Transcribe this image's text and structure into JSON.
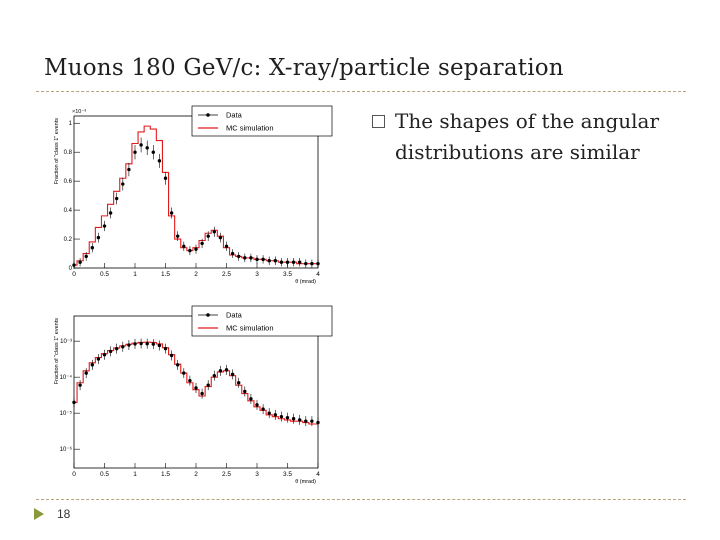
{
  "slide": {
    "title": "Muons 180 GeV/c: X-ray/particle separation",
    "bullet": "The shapes of the angular distributions are similar",
    "page_number": "18"
  },
  "colors": {
    "data": "#000000",
    "mc": "#e31a1c",
    "accent": "#8a9a3a",
    "rule": "#b9a27a"
  },
  "chart_data": [
    {
      "type": "line",
      "scale": "linear",
      "exponent_label": "×10⁻³",
      "xlabel": "θ (mrad)",
      "ylabel": "Fraction of \"class 1\" events",
      "xlim": [
        0,
        4
      ],
      "ylim": [
        0,
        0.00105
      ],
      "xticks": [
        "0",
        "0.5",
        "1",
        "1.5",
        "2",
        "2.5",
        "3",
        "3.5",
        "4"
      ],
      "yticks": [
        "0",
        "0.2",
        "0.4",
        "0.6",
        "0.8",
        "1"
      ],
      "legend": {
        "position": "top-right",
        "entries": [
          "Data",
          "MC simulation"
        ]
      },
      "x": [
        0.0,
        0.1,
        0.2,
        0.3,
        0.4,
        0.5,
        0.6,
        0.7,
        0.8,
        0.9,
        1.0,
        1.1,
        1.2,
        1.3,
        1.4,
        1.5,
        1.6,
        1.7,
        1.8,
        1.9,
        2.0,
        2.1,
        2.2,
        2.3,
        2.4,
        2.5,
        2.6,
        2.7,
        2.8,
        2.9,
        3.0,
        3.1,
        3.2,
        3.3,
        3.4,
        3.5,
        3.6,
        3.7,
        3.8,
        3.9,
        4.0
      ],
      "series": [
        {
          "name": "Data",
          "values": [
            2e-05,
            4e-05,
            8e-05,
            0.00014,
            0.00021,
            0.00029,
            0.00038,
            0.00048,
            0.00058,
            0.00068,
            0.0008,
            0.00085,
            0.00083,
            0.0008,
            0.00074,
            0.00062,
            0.00038,
            0.00022,
            0.00015,
            0.00012,
            0.00013,
            0.00017,
            0.00022,
            0.00025,
            0.00021,
            0.00015,
            0.0001,
            8e-05,
            7e-05,
            7e-05,
            6e-05,
            6e-05,
            5e-05,
            5e-05,
            4e-05,
            4e-05,
            4e-05,
            4e-05,
            3e-05,
            3e-05,
            3e-05
          ]
        },
        {
          "name": "MC simulation",
          "values": [
            2e-05,
            5e-05,
            0.0001,
            0.00018,
            0.00028,
            0.00036,
            0.00044,
            0.00053,
            0.00062,
            0.00072,
            0.00086,
            0.00094,
            0.00098,
            0.00096,
            0.00088,
            0.00066,
            0.00036,
            0.0002,
            0.00014,
            0.00012,
            0.00014,
            0.00019,
            0.00024,
            0.00026,
            0.00022,
            0.00014,
            9e-05,
            8e-05,
            7e-05,
            7e-05,
            6e-05,
            6e-05,
            5e-05,
            5e-05,
            4e-05,
            4e-05,
            4e-05,
            3e-05,
            3e-05,
            3e-05,
            3e-05
          ]
        }
      ]
    },
    {
      "type": "line",
      "scale": "log",
      "xlabel": "θ (mrad)",
      "ylabel": "Fraction of \"class 1\" events",
      "xlim": [
        0,
        4
      ],
      "ylim": [
        3e-07,
        0.005
      ],
      "xticks": [
        "0",
        "0.5",
        "1",
        "1.5",
        "2",
        "2.5",
        "3",
        "3.5",
        "4"
      ],
      "yticks": [
        "10⁻⁶",
        "10⁻⁵",
        "10⁻⁴",
        "10⁻³"
      ],
      "legend": {
        "position": "top-right",
        "entries": [
          "Data",
          "MC simulation"
        ]
      },
      "x": [
        0.0,
        0.1,
        0.2,
        0.3,
        0.4,
        0.5,
        0.6,
        0.7,
        0.8,
        0.9,
        1.0,
        1.1,
        1.2,
        1.3,
        1.4,
        1.5,
        1.6,
        1.7,
        1.8,
        1.9,
        2.0,
        2.1,
        2.2,
        2.3,
        2.4,
        2.5,
        2.6,
        2.7,
        2.8,
        2.9,
        3.0,
        3.1,
        3.2,
        3.3,
        3.4,
        3.5,
        3.6,
        3.7,
        3.8,
        3.9,
        4.0
      ],
      "series": [
        {
          "name": "Data",
          "values": [
            2e-05,
            6e-05,
            0.00013,
            0.00022,
            0.00032,
            0.00042,
            0.00052,
            0.00062,
            0.0007,
            0.00078,
            0.00084,
            0.00086,
            0.00085,
            0.00083,
            0.00076,
            0.00062,
            0.0004,
            0.00022,
            0.00013,
            8e-05,
            5e-05,
            3.5e-05,
            6e-05,
            0.00011,
            0.00015,
            0.00016,
            0.00012,
            7e-05,
            4e-05,
            2.5e-05,
            1.7e-05,
            1.3e-05,
            1e-05,
            9e-06,
            8e-06,
            7.5e-06,
            7e-06,
            6.5e-06,
            6e-06,
            6e-06,
            5.5e-06
          ]
        },
        {
          "name": "MC simulation",
          "values": [
            2e-05,
            7e-05,
            0.00015,
            0.00025,
            0.00035,
            0.00045,
            0.00055,
            0.00065,
            0.00074,
            0.00082,
            0.00088,
            0.00092,
            0.00094,
            0.00092,
            0.00084,
            0.00066,
            0.00042,
            0.00023,
            0.00013,
            7e-05,
            4.5e-05,
            3e-05,
            5.5e-05,
            0.0001,
            0.00014,
            0.00015,
            0.00011,
            6e-05,
            3.5e-05,
            2.2e-05,
            1.5e-05,
            1.2e-05,
            9e-06,
            8e-06,
            7e-06,
            6.5e-06,
            6e-06,
            6e-06,
            5.5e-06,
            5e-06,
            5e-06
          ]
        }
      ]
    }
  ]
}
